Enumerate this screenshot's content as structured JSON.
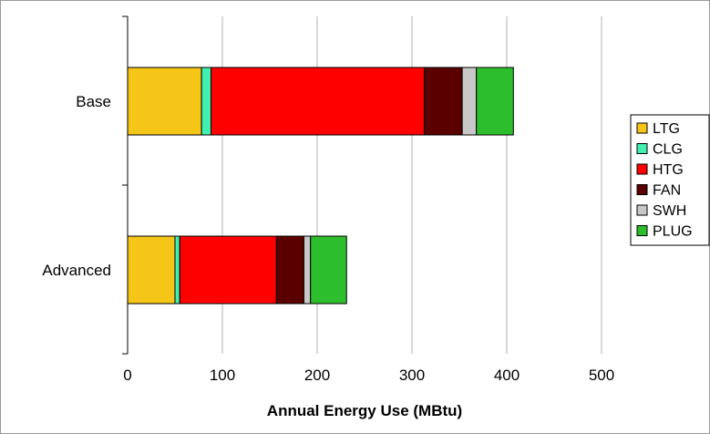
{
  "chart_data": {
    "type": "bar",
    "orientation": "horizontal",
    "stacked": true,
    "categories": [
      "Base",
      "Advanced"
    ],
    "series": [
      {
        "name": "LTG",
        "color": "#F5C518",
        "values": [
          78,
          50
        ]
      },
      {
        "name": "CLG",
        "color": "#40F0B0",
        "values": [
          10,
          5
        ]
      },
      {
        "name": "HTG",
        "color": "#FF0000",
        "values": [
          225,
          102
        ]
      },
      {
        "name": "FAN",
        "color": "#5A0000",
        "values": [
          40,
          29
        ]
      },
      {
        "name": "SWH",
        "color": "#C8C8C8",
        "values": [
          15,
          7
        ]
      },
      {
        "name": "PLUG",
        "color": "#2DBE2D",
        "values": [
          39,
          38
        ]
      }
    ],
    "xlabel": "Annual Energy Use (MBtu)",
    "ylabel": "",
    "xlim": [
      0,
      500
    ],
    "xticks": [
      0,
      100,
      200,
      300,
      400,
      500
    ],
    "grid": "vertical",
    "legend_position": "right"
  }
}
